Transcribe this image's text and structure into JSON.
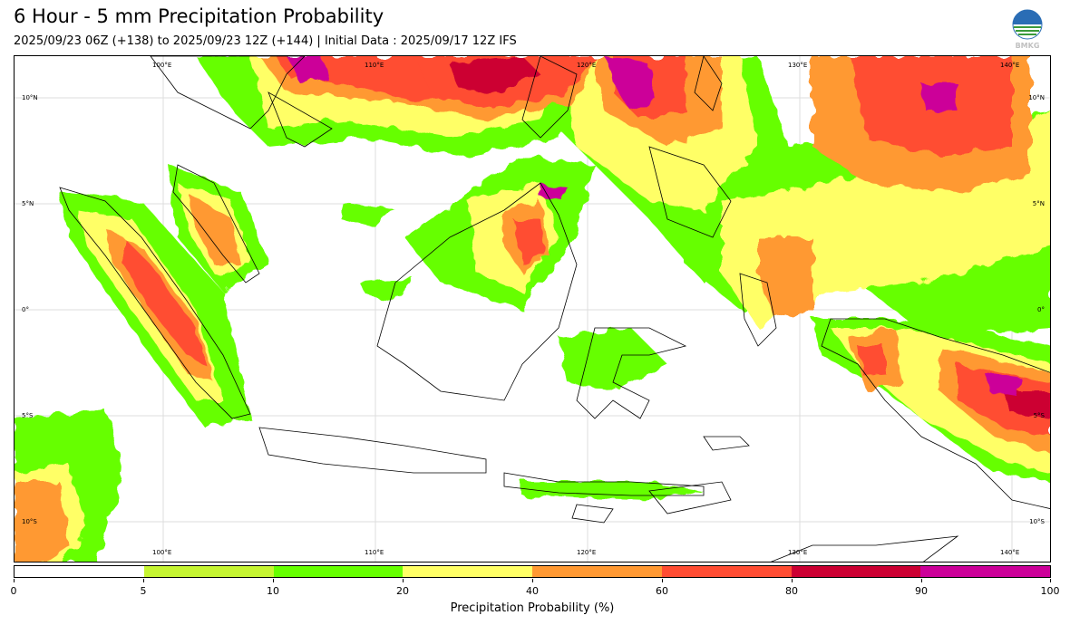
{
  "title": "6 Hour - 5 mm Precipitation Probability",
  "subtitle": "2025/09/23 06Z (+138) to 2025/09/23 12Z (+144) | Initial Data : 2025/09/17 12Z IFS",
  "logo_text": "BMKG",
  "map": {
    "lon_labels_top": [
      "100°E",
      "110°E",
      "120°E",
      "130°E",
      "140°E"
    ],
    "lon_labels_bottom": [
      "100°E",
      "110°E",
      "120°E",
      "130°E",
      "140°E"
    ],
    "lat_labels_left": [
      "10°N",
      "5°N",
      "0°",
      "5°S",
      "10°S"
    ],
    "lat_labels_right": [
      "10°N",
      "5°N",
      "0°",
      "5°S",
      "10°S"
    ]
  },
  "colorbar": {
    "label": "Precipitation Probability (%)",
    "ticks": [
      "0",
      "5",
      "10",
      "20",
      "40",
      "60",
      "80",
      "90",
      "100"
    ],
    "colors": [
      "#ffffff",
      "#c6f532",
      "#66ff00",
      "#ffff66",
      "#ff9933",
      "#ff4d33",
      "#cc0033",
      "#cc0099"
    ]
  }
}
